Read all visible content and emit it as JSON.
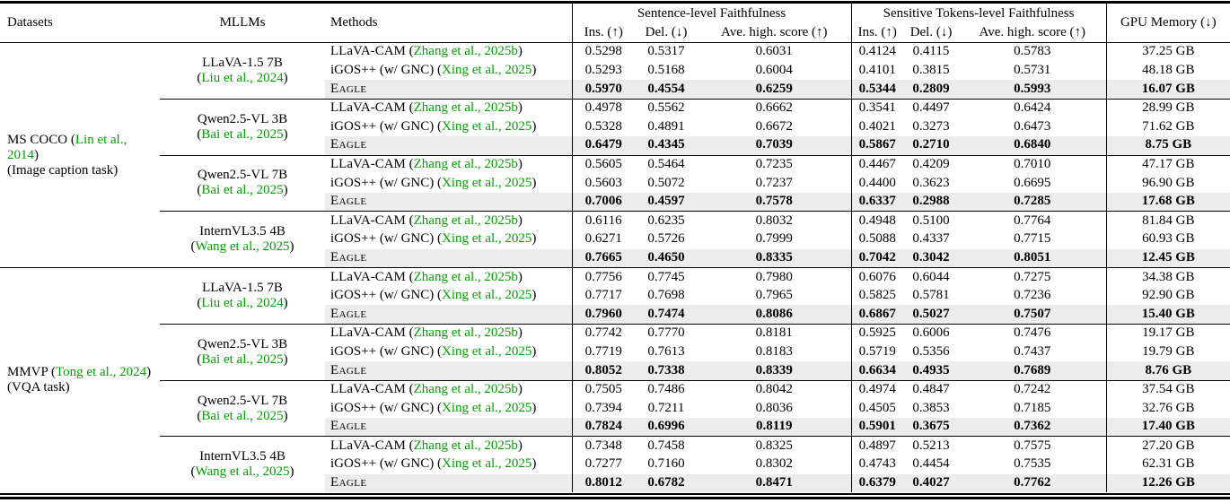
{
  "header": {
    "datasets": "Datasets",
    "mllms": "MLLMs",
    "methods": "Methods",
    "group1": "Sentence-level Faithfulness",
    "group2": "Sensitive Tokens-level Faithfulness",
    "sub_ins": "Ins. (↑)",
    "sub_del": "Del. (↓)",
    "sub_ave": "Ave. high. score (↑)",
    "gpu": "GPU Memory (↓)"
  },
  "colors": {
    "citation_green": "#00a000",
    "highlight_row_gray": "#ececec",
    "rule_black": "#000000"
  },
  "sections": [
    {
      "dataset": {
        "name": "MS COCO",
        "cite": "Lin et al., 2014",
        "task": "(Image caption task)"
      },
      "blocks": [
        {
          "mllm": {
            "name": "LLaVA-1.5 7B",
            "cite": "Liu et al., 2024"
          },
          "rows": [
            {
              "method": "LLaVA-CAM",
              "cite": "Zhang et al., 2025b",
              "values": [
                "0.5298",
                "0.5317",
                "0.6031",
                "0.4124",
                "0.4115",
                "0.5783"
              ],
              "gpu": "37.25 GB",
              "highlight": false
            },
            {
              "method": "iGOS++ (w/ GNC)",
              "cite": "Xing et al., 2025",
              "values": [
                "0.5293",
                "0.5168",
                "0.6004",
                "0.4101",
                "0.3815",
                "0.5731"
              ],
              "gpu": "48.18 GB",
              "highlight": false
            },
            {
              "method": "Eagle",
              "cite": null,
              "smallcaps": true,
              "values": [
                "0.5970",
                "0.4554",
                "0.6259",
                "0.5344",
                "0.2809",
                "0.5993"
              ],
              "gpu": "16.07 GB",
              "highlight": true
            }
          ]
        },
        {
          "mllm": {
            "name": "Qwen2.5-VL 3B",
            "cite": "Bai et al., 2025"
          },
          "rows": [
            {
              "method": "LLaVA-CAM",
              "cite": "Zhang et al., 2025b",
              "values": [
                "0.4978",
                "0.5562",
                "0.6662",
                "0.3541",
                "0.4497",
                "0.6424"
              ],
              "gpu": "28.99 GB",
              "highlight": false
            },
            {
              "method": "iGOS++ (w/ GNC)",
              "cite": "Xing et al., 2025",
              "values": [
                "0.5328",
                "0.4891",
                "0.6672",
                "0.4021",
                "0.3273",
                "0.6473"
              ],
              "gpu": "71.62 GB",
              "highlight": false
            },
            {
              "method": "Eagle",
              "cite": null,
              "smallcaps": true,
              "values": [
                "0.6479",
                "0.4345",
                "0.7039",
                "0.5867",
                "0.2710",
                "0.6840"
              ],
              "gpu": "8.75 GB",
              "highlight": true
            }
          ]
        },
        {
          "mllm": {
            "name": "Qwen2.5-VL 7B",
            "cite": "Bai et al., 2025"
          },
          "rows": [
            {
              "method": "LLaVA-CAM",
              "cite": "Zhang et al., 2025b",
              "values": [
                "0.5605",
                "0.5464",
                "0.7235",
                "0.4467",
                "0.4209",
                "0.7010"
              ],
              "gpu": "47.17 GB",
              "highlight": false
            },
            {
              "method": "iGOS++ (w/ GNC)",
              "cite": "Xing et al., 2025",
              "values": [
                "0.5603",
                "0.5072",
                "0.7237",
                "0.4400",
                "0.3623",
                "0.6695"
              ],
              "gpu": "96.90 GB",
              "highlight": false
            },
            {
              "method": "Eagle",
              "cite": null,
              "smallcaps": true,
              "values": [
                "0.7006",
                "0.4597",
                "0.7578",
                "0.6337",
                "0.2988",
                "0.7285"
              ],
              "gpu": "17.68 GB",
              "highlight": true
            }
          ]
        },
        {
          "mllm": {
            "name": "InternVL3.5 4B",
            "cite": "Wang et al., 2025"
          },
          "rows": [
            {
              "method": "LLaVA-CAM",
              "cite": "Zhang et al., 2025b",
              "values": [
                "0.6116",
                "0.6235",
                "0.8032",
                "0.4948",
                "0.5100",
                "0.7764"
              ],
              "gpu": "81.84 GB",
              "highlight": false
            },
            {
              "method": "iGOS++ (w/ GNC)",
              "cite": "Xing et al., 2025",
              "values": [
                "0.6271",
                "0.5726",
                "0.7999",
                "0.5088",
                "0.4337",
                "0.7715"
              ],
              "gpu": "60.93 GB",
              "highlight": false
            },
            {
              "method": "Eagle",
              "cite": null,
              "smallcaps": true,
              "values": [
                "0.7665",
                "0.4650",
                "0.8335",
                "0.7042",
                "0.3042",
                "0.8051"
              ],
              "gpu": "12.45 GB",
              "highlight": true
            }
          ]
        }
      ]
    },
    {
      "dataset": {
        "name": "MMVP",
        "cite": "Tong et al., 2024",
        "task": "(VQA task)"
      },
      "blocks": [
        {
          "mllm": {
            "name": "LLaVA-1.5 7B",
            "cite": "Liu et al., 2024"
          },
          "rows": [
            {
              "method": "LLaVA-CAM",
              "cite": "Zhang et al., 2025b",
              "values": [
                "0.7756",
                "0.7745",
                "0.7980",
                "0.6076",
                "0.6044",
                "0.7275"
              ],
              "gpu": "34.38 GB",
              "highlight": false
            },
            {
              "method": "iGOS++ (w/ GNC)",
              "cite": "Xing et al., 2025",
              "values": [
                "0.7717",
                "0.7698",
                "0.7965",
                "0.5825",
                "0.5781",
                "0.7236"
              ],
              "gpu": "92.90 GB",
              "highlight": false
            },
            {
              "method": "Eagle",
              "cite": null,
              "smallcaps": true,
              "values": [
                "0.7960",
                "0.7474",
                "0.8086",
                "0.6867",
                "0.5027",
                "0.7507"
              ],
              "gpu": "15.40 GB",
              "highlight": true
            }
          ]
        },
        {
          "mllm": {
            "name": "Qwen2.5-VL 3B",
            "cite": "Bai et al., 2025"
          },
          "rows": [
            {
              "method": "LLaVA-CAM",
              "cite": "Zhang et al., 2025b",
              "values": [
                "0.7742",
                "0.7770",
                "0.8181",
                "0.5925",
                "0.6006",
                "0.7476"
              ],
              "gpu": "19.17 GB",
              "highlight": false
            },
            {
              "method": "iGOS++ (w/ GNC)",
              "cite": "Xing et al., 2025",
              "values": [
                "0.7719",
                "0.7613",
                "0.8183",
                "0.5719",
                "0.5356",
                "0.7437"
              ],
              "gpu": "19.79 GB",
              "highlight": false
            },
            {
              "method": "Eagle",
              "cite": null,
              "smallcaps": true,
              "values": [
                "0.8052",
                "0.7338",
                "0.8339",
                "0.6634",
                "0.4935",
                "0.7689"
              ],
              "gpu": "8.76 GB",
              "highlight": true
            }
          ]
        },
        {
          "mllm": {
            "name": "Qwen2.5-VL 7B",
            "cite": "Bai et al., 2025"
          },
          "rows": [
            {
              "method": "LLaVA-CAM",
              "cite": "Zhang et al., 2025b",
              "values": [
                "0.7505",
                "0.7486",
                "0.8042",
                "0.4974",
                "0.4847",
                "0.7242"
              ],
              "gpu": "37.54 GB",
              "highlight": false
            },
            {
              "method": "iGOS++ (w/ GNC)",
              "cite": "Xing et al., 2025",
              "values": [
                "0.7394",
                "0.7211",
                "0.8036",
                "0.4505",
                "0.3853",
                "0.7185"
              ],
              "gpu": "32.76 GB",
              "highlight": false
            },
            {
              "method": "Eagle",
              "cite": null,
              "smallcaps": true,
              "values": [
                "0.7824",
                "0.6996",
                "0.8119",
                "0.5901",
                "0.3675",
                "0.7362"
              ],
              "gpu": "17.40 GB",
              "highlight": true
            }
          ]
        },
        {
          "mllm": {
            "name": "InternVL3.5 4B",
            "cite": "Wang et al., 2025"
          },
          "rows": [
            {
              "method": "LLaVA-CAM",
              "cite": "Zhang et al., 2025b",
              "values": [
                "0.7348",
                "0.7458",
                "0.8325",
                "0.4897",
                "0.5213",
                "0.7575"
              ],
              "gpu": "27.20 GB",
              "highlight": false
            },
            {
              "method": "iGOS++ (w/ GNC)",
              "cite": "Xing et al., 2025",
              "values": [
                "0.7277",
                "0.7160",
                "0.8302",
                "0.4743",
                "0.4454",
                "0.7535"
              ],
              "gpu": "62.31 GB",
              "highlight": false
            },
            {
              "method": "Eagle",
              "cite": null,
              "smallcaps": true,
              "values": [
                "0.8012",
                "0.6782",
                "0.8471",
                "0.6379",
                "0.4027",
                "0.7762"
              ],
              "gpu": "12.26 GB",
              "highlight": true
            }
          ]
        }
      ]
    }
  ]
}
